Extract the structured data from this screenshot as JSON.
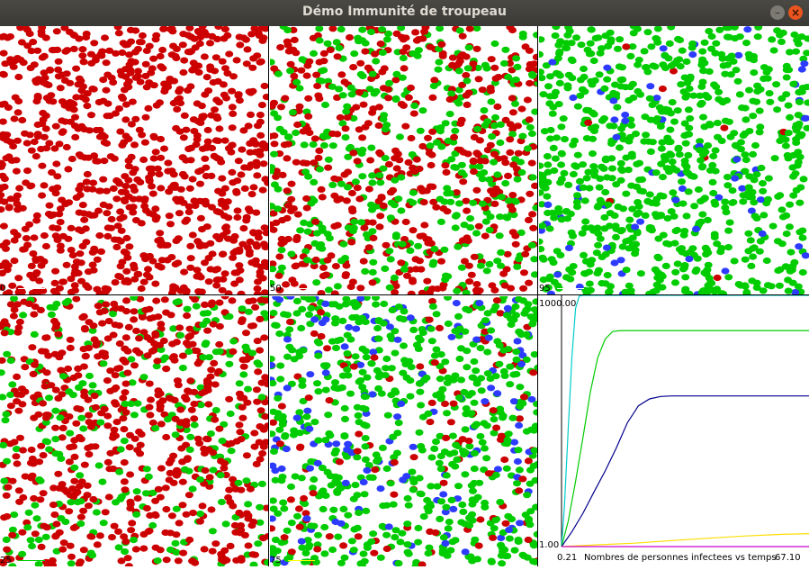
{
  "window": {
    "title": "Démo Immunité de troupeau",
    "minimize_glyph": "–",
    "close_glyph": "×"
  },
  "colors": {
    "infected": "#cc0000",
    "recovered": "#00cc00",
    "vaccinated": "#2d3bff"
  },
  "panels": [
    {
      "label": "0",
      "line_color": "#ffffff",
      "mix": {
        "infected": 1.0,
        "recovered": 0.0,
        "vaccinated": 0.0
      }
    },
    {
      "label": "50",
      "line_color": "#ffffff",
      "mix": {
        "infected": 0.55,
        "recovered": 0.45,
        "vaccinated": 0.0
      }
    },
    {
      "label": "95",
      "line_color": "#ffffff",
      "mix": {
        "infected": 0.01,
        "recovered": 0.93,
        "vaccinated": 0.06
      }
    },
    {
      "label": "25",
      "line_color": "#00cc00",
      "mix": {
        "infected": 0.72,
        "recovered": 0.28,
        "vaccinated": 0.0
      }
    },
    {
      "label": "75",
      "line_color": "#ffff00",
      "mix": {
        "infected": 0.12,
        "recovered": 0.72,
        "vaccinated": 0.16
      }
    }
  ],
  "chart": {
    "y_max_label": "1000.00",
    "y_min_label": "1.00",
    "x_min_label": "0.21",
    "caption": "Nombres de personnes infectees vs temps",
    "x_max_label": "67.10"
  },
  "chart_data": {
    "type": "line",
    "title": "Nombres de personnes infectees vs temps",
    "xlabel": "",
    "ylabel": "",
    "xlim": [
      0.21,
      67.1
    ],
    "ylim": [
      1,
      1000
    ],
    "y_scale": "log",
    "series": [
      {
        "color": "#00cccc",
        "x": [
          0.21,
          1,
          2,
          3,
          4,
          5,
          6,
          67.1
        ],
        "values": [
          1,
          3,
          25,
          180,
          700,
          980,
          1000,
          1000
        ]
      },
      {
        "color": "#00cc00",
        "x": [
          0.21,
          2,
          4,
          6,
          8,
          10,
          12,
          14,
          16,
          67.1
        ],
        "values": [
          1,
          2,
          6,
          20,
          70,
          180,
          300,
          370,
          380,
          380
        ]
      },
      {
        "color": "#00008b",
        "x": [
          0.21,
          3,
          6,
          9,
          12,
          15,
          18,
          21,
          24,
          27,
          30,
          67.1
        ],
        "values": [
          1,
          1.5,
          2.5,
          4.5,
          8,
          15,
          30,
          48,
          58,
          62,
          63,
          63
        ]
      },
      {
        "color": "#ffdd00",
        "x": [
          0.21,
          10,
          20,
          30,
          40,
          50,
          60,
          67.1
        ],
        "values": [
          1,
          1.05,
          1.1,
          1.18,
          1.26,
          1.34,
          1.4,
          1.43
        ]
      },
      {
        "color": "#cc00cc",
        "x": [
          0.21,
          67.1
        ],
        "values": [
          1,
          1
        ]
      }
    ]
  }
}
